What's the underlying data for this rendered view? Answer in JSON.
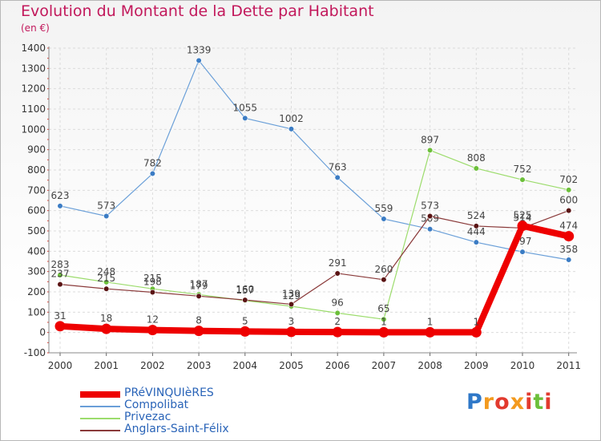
{
  "colors": {
    "accent": "#c2185b",
    "legend_text": "#2a64b8"
  },
  "brand": {
    "text": "Proxiti"
  },
  "chart_data": {
    "type": "line",
    "title": "Evolution du Montant de la Dette par Habitant",
    "subtitle": "(en €)",
    "xlabel": "",
    "ylabel": "",
    "x": [
      "2000",
      "2001",
      "2002",
      "2003",
      "2004",
      "2005",
      "2006",
      "2007",
      "2008",
      "2009",
      "2010",
      "2011"
    ],
    "ylim": [
      -100,
      1400
    ],
    "yticks": [
      -100,
      0,
      100,
      200,
      300,
      400,
      500,
      600,
      700,
      800,
      900,
      1000,
      1100,
      1200,
      1300,
      1400
    ],
    "grid": true,
    "legend_position": "bottom-left",
    "series": [
      {
        "name": "Compolibat",
        "color": "#6a9fd8",
        "marker": "#3b7cc4",
        "width": 1.2,
        "values": [
          623,
          573,
          782,
          1339,
          1055,
          1002,
          763,
          559,
          509,
          444,
          397,
          358
        ]
      },
      {
        "name": "Privezac",
        "color": "#9cdc6c",
        "marker": "#6cbf3a",
        "width": 1.2,
        "values": [
          283,
          248,
          215,
          187,
          157,
          129,
          96,
          65,
          897,
          808,
          752,
          702
        ]
      },
      {
        "name": "Anglars-Saint-Félix",
        "color": "#8a3a3a",
        "marker": "#5a1414",
        "width": 1.2,
        "values": [
          237,
          215,
          198,
          179,
          160,
          139,
          291,
          260,
          573,
          524,
          514,
          600
        ]
      },
      {
        "name": "PRéVINQUIèRES",
        "color": "#ee0000",
        "marker": "#ee0000",
        "width": 8,
        "values": [
          31,
          18,
          12,
          8,
          5,
          3,
          2,
          1,
          1,
          1,
          525,
          474
        ]
      }
    ],
    "legend_order": [
      3,
      0,
      1,
      2
    ]
  }
}
